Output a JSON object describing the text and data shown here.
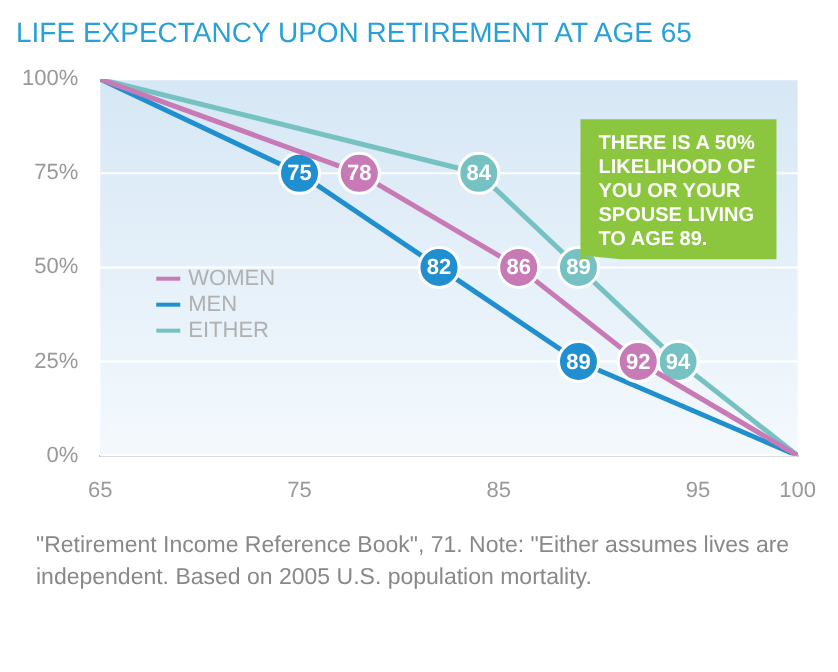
{
  "chart_data": {
    "type": "line",
    "title": "LIFE EXPECTANCY UPON RETIREMENT AT AGE 65",
    "xlim": [
      65,
      100
    ],
    "xticks": [
      65,
      75,
      85,
      95,
      100
    ],
    "ylim": [
      0,
      100
    ],
    "yticks": [
      {
        "value": 0,
        "label": "0%"
      },
      {
        "value": 25,
        "label": "25%"
      },
      {
        "value": 50,
        "label": "50%"
      },
      {
        "value": 75,
        "label": "75%"
      },
      {
        "value": 100,
        "label": "100%"
      }
    ],
    "grid": "y",
    "legend": "left",
    "marker": "circle",
    "series": [
      {
        "name": "WOMEN",
        "color": "#c77ab5",
        "x": [
          65,
          78,
          86,
          92,
          100
        ],
        "values": [
          100,
          75,
          50,
          25,
          0
        ]
      },
      {
        "name": "MEN",
        "color": "#1f8fd0",
        "x": [
          65,
          75,
          82,
          89,
          100
        ],
        "values": [
          100,
          75,
          50,
          25,
          0
        ]
      },
      {
        "name": "EITHER",
        "color": "#76c2c2",
        "x": [
          65,
          84,
          89,
          94,
          100
        ],
        "values": [
          100,
          75,
          50,
          25,
          0
        ]
      }
    ],
    "annotations": [
      {
        "text": "78",
        "x": 78,
        "y": 75
      },
      {
        "text": "86",
        "x": 86,
        "y": 50
      },
      {
        "text": "92",
        "x": 92,
        "y": 25
      },
      {
        "text": "75",
        "x": 75,
        "y": 75
      },
      {
        "text": "82",
        "x": 82,
        "y": 50
      },
      {
        "text": "89",
        "x": 89,
        "y": 25
      },
      {
        "text": "84",
        "x": 84,
        "y": 75
      },
      {
        "text": "89",
        "x": 89,
        "y": 50
      },
      {
        "text": "94",
        "x": 94,
        "y": 25
      },
      {
        "text": "THERE IS A 50% LIKELIHOOD OF YOU OR YOUR SPOUSE LIVING TO AGE 89.",
        "x": 89,
        "y": 50
      },
      "\"Retirement Income Reference Book\", 71. Note: \"Either assumes lives are independent. Based on 2005 U.S. population mortality."
    ]
  }
}
